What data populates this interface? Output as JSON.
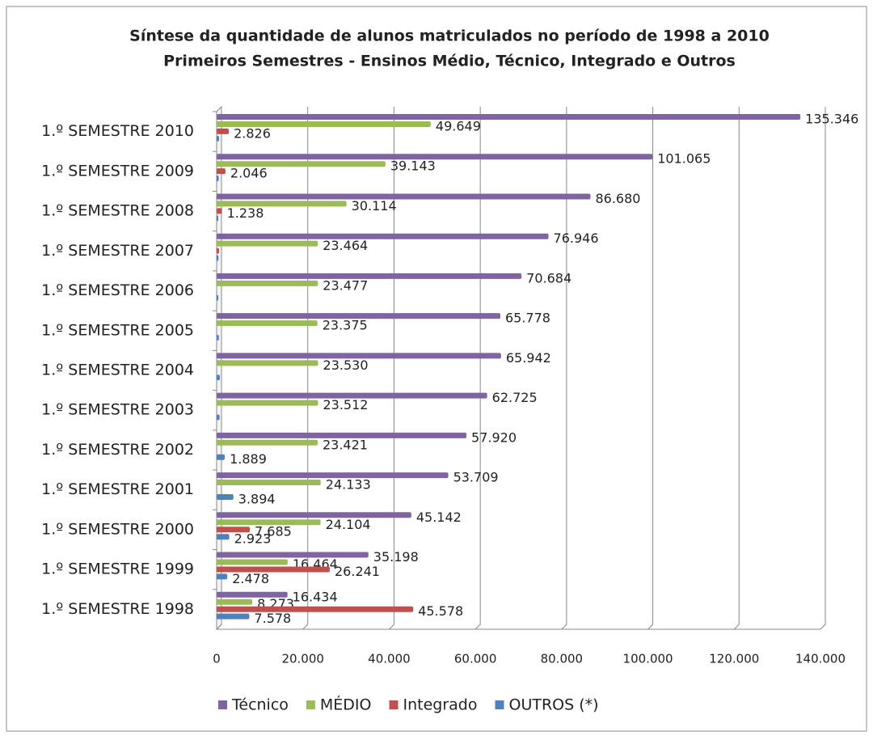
{
  "chart_data": {
    "type": "bar",
    "orientation": "horizontal",
    "title": "Síntese da quantidade de alunos matriculados no período de 1998 a 2010",
    "subtitle": "Primeiros Semestres - Ensinos Médio, Técnico, Integrado e Outros",
    "categories": [
      "1.º SEMESTRE 2010",
      "1.º SEMESTRE 2009",
      "1.º SEMESTRE 2008",
      "1.º SEMESTRE 2007",
      "1.º SEMESTRE 2006",
      "1.º SEMESTRE 2005",
      "1.º SEMESTRE 2004",
      "1.º SEMESTRE 2003",
      "1.º SEMESTRE 2002",
      "1.º SEMESTRE 2001",
      "1.º SEMESTRE 2000",
      "1.º SEMESTRE 1999",
      "1.º SEMESTRE 1998"
    ],
    "series": [
      {
        "name": "Técnico",
        "color": "#8064a2",
        "values": [
          135346,
          101065,
          86680,
          76946,
          70684,
          65778,
          65942,
          62725,
          57920,
          53709,
          45142,
          35198,
          16434
        ],
        "value_labels": [
          "135.346",
          "101.065",
          "86.680",
          "76.946",
          "70.684",
          "65.778",
          "65.942",
          "62.725",
          "57.920",
          "53.709",
          "45.142",
          "35.198",
          "16.434"
        ]
      },
      {
        "name": "MÉDIO",
        "color": "#9bbb59",
        "values": [
          49649,
          39143,
          30114,
          23464,
          23477,
          23375,
          23530,
          23512,
          23421,
          24133,
          24104,
          16464,
          8273
        ],
        "value_labels": [
          "49.649",
          "39.143",
          "30.114",
          "23.464",
          "23.477",
          "23.375",
          "23.530",
          "23.512",
          "23.421",
          "24.133",
          "24.104",
          "16.464",
          "8.273"
        ]
      },
      {
        "name": "Integrado",
        "color": "#c0504d",
        "values": [
          2826,
          2046,
          1238,
          546,
          null,
          null,
          null,
          null,
          null,
          null,
          7685,
          26241,
          45578
        ],
        "value_labels": [
          "2.826",
          "2.046",
          "1.238",
          null,
          null,
          null,
          null,
          null,
          null,
          null,
          "7.685",
          "26.241",
          "45.578"
        ]
      },
      {
        "name": "OUTROS (*)",
        "color": "#4f81bd",
        "values": [
          551,
          486,
          185,
          428,
          390,
          513,
          745,
          677,
          1889,
          3894,
          2923,
          2478,
          7578
        ],
        "value_labels": [
          null,
          null,
          null,
          null,
          null,
          null,
          null,
          null,
          "1.889",
          "3.894",
          "2.923",
          "2.478",
          "7.578"
        ]
      }
    ],
    "xlim": [
      0,
      140000
    ],
    "xticks": [
      0,
      {
        "value": 20000,
        "label": "20.000"
      },
      {
        "value": 40000,
        "label": "40.000"
      },
      {
        "value": 60000,
        "label": "60.000"
      },
      {
        "value": 80000,
        "label": "80.000"
      },
      {
        "value": 100000,
        "label": "100.000"
      },
      {
        "value": 120000,
        "label": "120.000"
      },
      {
        "value": 140000,
        "label": "140.000"
      }
    ],
    "grid": true,
    "legend": "bottom"
  }
}
